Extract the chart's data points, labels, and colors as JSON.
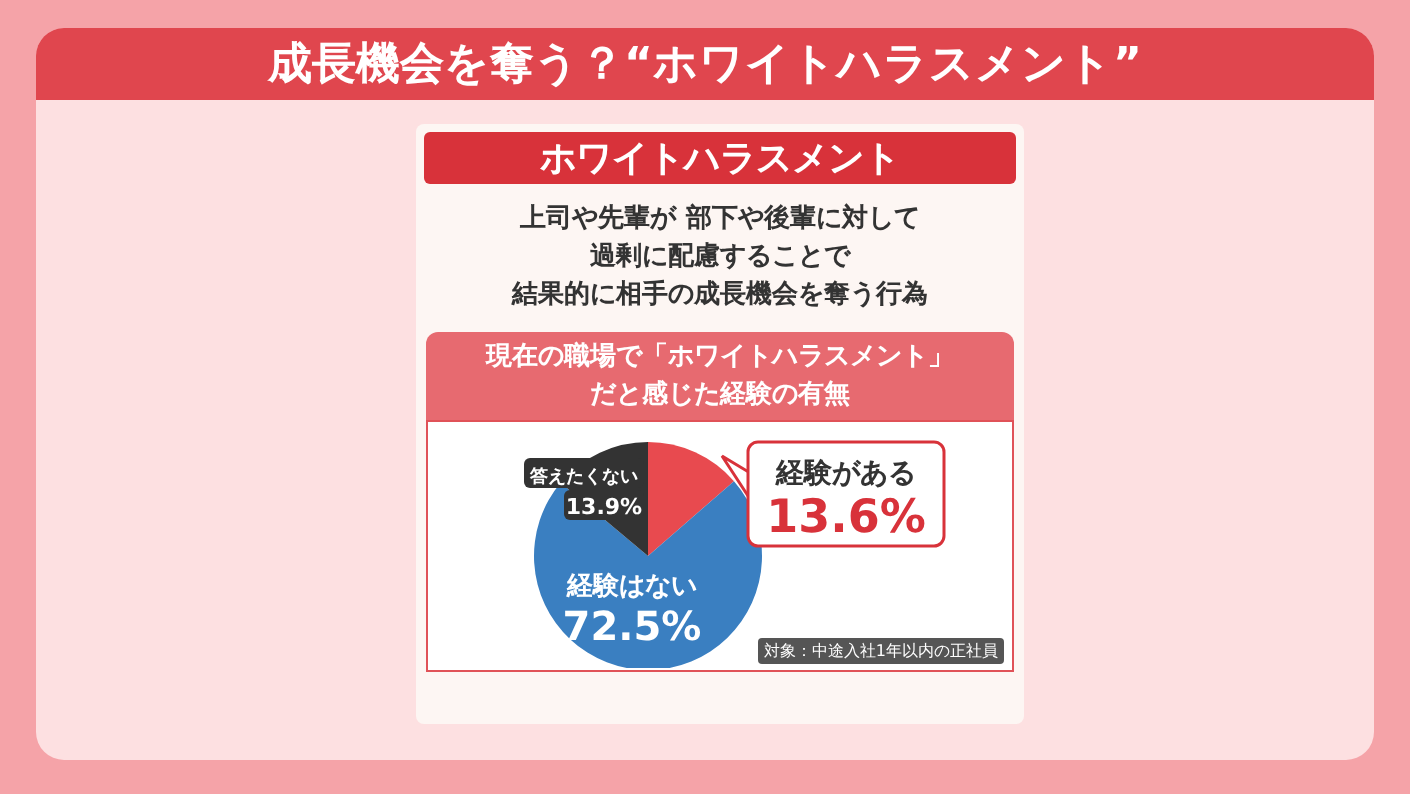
{
  "chart_data": {
    "type": "pie",
    "title": "成長機会を奪う？“ホワイトハラスメント”",
    "subtitle": "ホワイトハラスメント",
    "annotations": [
      "上司や先輩が 部下や後輩に対して",
      "過剰に配慮することで",
      "結果的に相手の成長機会を奪う行為",
      "現在の職場で「ホワイトハラスメント」",
      "だと感じた経験の有無",
      "対象：中途入社1年以内の正社員"
    ],
    "categories": [
      "経験がある",
      "経験はない",
      "答えたくない"
    ],
    "values": [
      13.6,
      72.5,
      13.9
    ],
    "value_labels": [
      "13.6%",
      "72.5%",
      "13.9%"
    ],
    "colors": [
      "#e84a4f",
      "#3a7fc1",
      "#333333"
    ],
    "legend": false
  }
}
